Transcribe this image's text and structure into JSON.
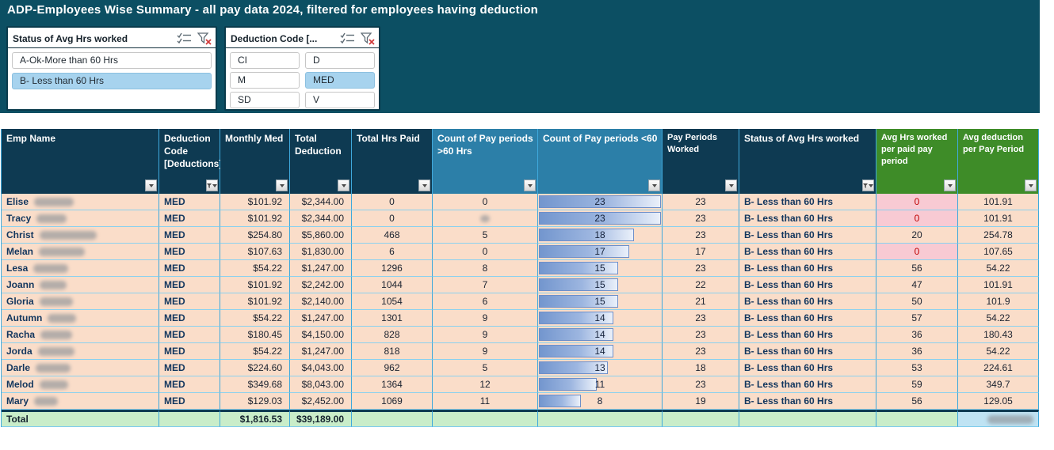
{
  "title": "ADP-Employees Wise Summary  - all pay data 2024, filtered for employees having deduction",
  "slicers": [
    {
      "title": "Status of Avg Hrs worked",
      "icons": [
        "multi-select-icon",
        "clear-filter-icon"
      ],
      "items": [
        {
          "label": "A-Ok-More than 60 Hrs",
          "selected": false
        },
        {
          "label": "B- Less than 60 Hrs",
          "selected": true
        }
      ]
    },
    {
      "title": "Deduction Code [...",
      "icons": [
        "multi-select-icon",
        "clear-filter-icon"
      ],
      "items": [
        {
          "label": "CI",
          "selected": false
        },
        {
          "label": "D",
          "selected": false
        },
        {
          "label": "M",
          "selected": false
        },
        {
          "label": "MED",
          "selected": true
        },
        {
          "label": "SD",
          "selected": false
        },
        {
          "label": "V",
          "selected": false
        }
      ]
    }
  ],
  "table": {
    "columns": [
      {
        "label": "Emp Name",
        "filter": "dropdown",
        "style": "dark"
      },
      {
        "label": "Deduction Code [Deductions]",
        "filter": "filtered",
        "style": "dark"
      },
      {
        "label": "Monthly Med",
        "filter": "dropdown",
        "style": "dark"
      },
      {
        "label": "Total Deduction",
        "filter": "dropdown",
        "style": "dark"
      },
      {
        "label": "Total Hrs Paid",
        "filter": "dropdown",
        "style": "dark"
      },
      {
        "label": "Count of Pay periods >60 Hrs",
        "filter": "dropdown",
        "style": "light"
      },
      {
        "label": "Count of Pay periods <60",
        "filter": "dropdown",
        "style": "light"
      },
      {
        "label": "Pay Periods Worked",
        "filter": "dropdown",
        "style": "dark-small"
      },
      {
        "label": "Status of Avg Hrs worked",
        "filter": "filtered",
        "style": "dark"
      },
      {
        "label": "Avg Hrs worked per paid pay period",
        "filter": "dropdown",
        "style": "green"
      },
      {
        "label": "Avg deduction per Pay Period",
        "filter": "dropdown",
        "style": "green"
      }
    ],
    "bar_max": 23,
    "rows": [
      {
        "name": "Elise",
        "name_redact_w": 50,
        "code": "MED",
        "monthly_med": "$101.92",
        "total_deduction": "$2,344.00",
        "total_hrs_paid": "0",
        "count_gt60": "0",
        "gt60_redacted": false,
        "count_lt60": 23,
        "periods_worked": "23",
        "status": "B- Less than 60 Hrs",
        "avg_hrs": "0",
        "avg_hrs_alert": true,
        "avg_deduction": "101.91"
      },
      {
        "name": "Tracy",
        "name_redact_w": 38,
        "code": "MED",
        "monthly_med": "$101.92",
        "total_deduction": "$2,344.00",
        "total_hrs_paid": "0",
        "count_gt60": "",
        "gt60_redacted": true,
        "count_lt60": 23,
        "periods_worked": "23",
        "status": "B- Less than 60 Hrs",
        "avg_hrs": "0",
        "avg_hrs_alert": true,
        "avg_deduction": "101.91"
      },
      {
        "name": "Christ",
        "name_redact_w": 72,
        "code": "MED",
        "monthly_med": "$254.80",
        "total_deduction": "$5,860.00",
        "total_hrs_paid": "468",
        "count_gt60": "5",
        "gt60_redacted": false,
        "count_lt60": 18,
        "periods_worked": "23",
        "status": "B- Less than 60 Hrs",
        "avg_hrs": "20",
        "avg_hrs_alert": false,
        "avg_deduction": "254.78"
      },
      {
        "name": "Melan",
        "name_redact_w": 58,
        "code": "MED",
        "monthly_med": "$107.63",
        "total_deduction": "$1,830.00",
        "total_hrs_paid": "6",
        "count_gt60": "0",
        "gt60_redacted": false,
        "count_lt60": 17,
        "periods_worked": "17",
        "status": "B- Less than 60 Hrs",
        "avg_hrs": "0",
        "avg_hrs_alert": true,
        "avg_deduction": "107.65"
      },
      {
        "name": "Lesa",
        "name_redact_w": 44,
        "code": "MED",
        "monthly_med": "$54.22",
        "total_deduction": "$1,247.00",
        "total_hrs_paid": "1296",
        "count_gt60": "8",
        "gt60_redacted": false,
        "count_lt60": 15,
        "periods_worked": "23",
        "status": "B- Less than 60 Hrs",
        "avg_hrs": "56",
        "avg_hrs_alert": false,
        "avg_deduction": "54.22"
      },
      {
        "name": "Joann",
        "name_redact_w": 34,
        "code": "MED",
        "monthly_med": "$101.92",
        "total_deduction": "$2,242.00",
        "total_hrs_paid": "1044",
        "count_gt60": "7",
        "gt60_redacted": false,
        "count_lt60": 15,
        "periods_worked": "22",
        "status": "B- Less than 60 Hrs",
        "avg_hrs": "47",
        "avg_hrs_alert": false,
        "avg_deduction": "101.91"
      },
      {
        "name": "Gloria",
        "name_redact_w": 42,
        "code": "MED",
        "monthly_med": "$101.92",
        "total_deduction": "$2,140.00",
        "total_hrs_paid": "1054",
        "count_gt60": "6",
        "gt60_redacted": false,
        "count_lt60": 15,
        "periods_worked": "21",
        "status": "B- Less than 60 Hrs",
        "avg_hrs": "50",
        "avg_hrs_alert": false,
        "avg_deduction": "101.9"
      },
      {
        "name": "Autumn",
        "name_redact_w": 36,
        "code": "MED",
        "monthly_med": "$54.22",
        "total_deduction": "$1,247.00",
        "total_hrs_paid": "1301",
        "count_gt60": "9",
        "gt60_redacted": false,
        "count_lt60": 14,
        "periods_worked": "23",
        "status": "B- Less than 60 Hrs",
        "avg_hrs": "57",
        "avg_hrs_alert": false,
        "avg_deduction": "54.22"
      },
      {
        "name": "Racha",
        "name_redact_w": 40,
        "code": "MED",
        "monthly_med": "$180.45",
        "total_deduction": "$4,150.00",
        "total_hrs_paid": "828",
        "count_gt60": "9",
        "gt60_redacted": false,
        "count_lt60": 14,
        "periods_worked": "23",
        "status": "B- Less than 60 Hrs",
        "avg_hrs": "36",
        "avg_hrs_alert": false,
        "avg_deduction": "180.43"
      },
      {
        "name": "Jorda",
        "name_redact_w": 46,
        "code": "MED",
        "monthly_med": "$54.22",
        "total_deduction": "$1,247.00",
        "total_hrs_paid": "818",
        "count_gt60": "9",
        "gt60_redacted": false,
        "count_lt60": 14,
        "periods_worked": "23",
        "status": "B- Less than 60 Hrs",
        "avg_hrs": "36",
        "avg_hrs_alert": false,
        "avg_deduction": "54.22"
      },
      {
        "name": "Darle",
        "name_redact_w": 44,
        "code": "MED",
        "monthly_med": "$224.60",
        "total_deduction": "$4,043.00",
        "total_hrs_paid": "962",
        "count_gt60": "5",
        "gt60_redacted": false,
        "count_lt60": 13,
        "periods_worked": "18",
        "status": "B- Less than 60 Hrs",
        "avg_hrs": "53",
        "avg_hrs_alert": false,
        "avg_deduction": "224.61"
      },
      {
        "name": "Melod",
        "name_redact_w": 36,
        "code": "MED",
        "monthly_med": "$349.68",
        "total_deduction": "$8,043.00",
        "total_hrs_paid": "1364",
        "count_gt60": "12",
        "gt60_redacted": false,
        "count_lt60": 11,
        "periods_worked": "23",
        "status": "B- Less than 60 Hrs",
        "avg_hrs": "59",
        "avg_hrs_alert": false,
        "avg_deduction": "349.7"
      },
      {
        "name": "Mary",
        "name_redact_w": 30,
        "code": "MED",
        "monthly_med": "$129.03",
        "total_deduction": "$2,452.00",
        "total_hrs_paid": "1069",
        "count_gt60": "11",
        "gt60_redacted": false,
        "count_lt60": 8,
        "periods_worked": "19",
        "status": "B- Less than 60 Hrs",
        "avg_hrs": "56",
        "avg_hrs_alert": false,
        "avg_deduction": "129.05"
      }
    ],
    "total_row": {
      "label": "Total",
      "monthly_med_total": "$1,816.53",
      "total_deduction_total": "$39,189.00",
      "avg_deduction_total_redacted": true
    }
  },
  "colors": {
    "banner": "#0C4F63",
    "header_dark": "#0E3A52",
    "header_light_blue": "#2C7FA8",
    "header_green": "#3E8C28",
    "row_background": "#FADDC9",
    "alert_background": "#F8CAD3",
    "alert_text": "#C00000",
    "slicer_selected": "#A7D3EE",
    "total_background": "#C9EDC9",
    "total_highlight": "#BFE3F3",
    "data_bar": "#7396CE",
    "gridline": "#3FA9DC"
  }
}
